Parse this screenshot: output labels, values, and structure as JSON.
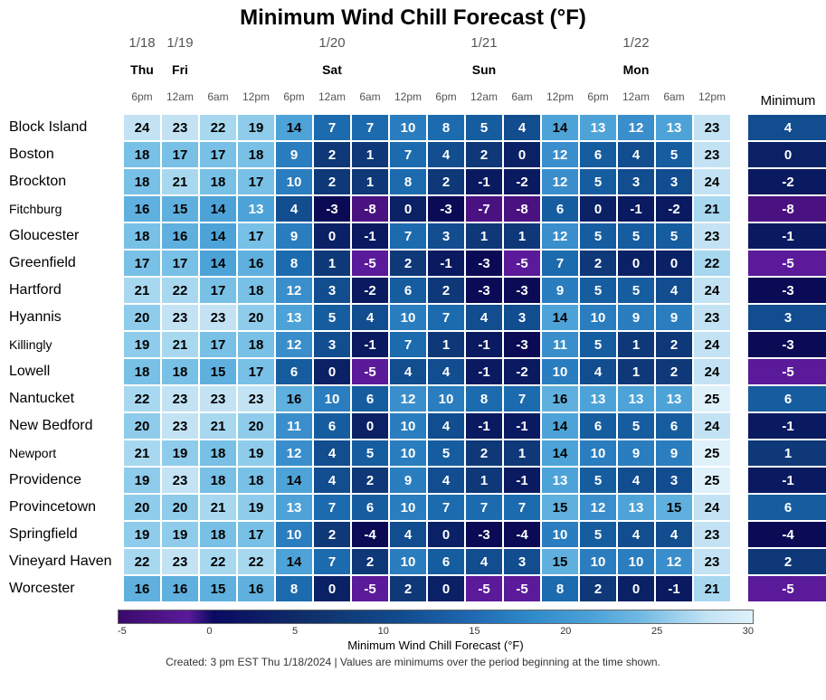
{
  "title": "Minimum Wind Chill Forecast (°F)",
  "dates": [
    "1/18",
    "1/19",
    "",
    "",
    "",
    "1/20",
    "",
    "",
    "",
    "1/21",
    "",
    "",
    "",
    "1/22",
    "",
    ""
  ],
  "dows": [
    "Thu",
    "Fri",
    "",
    "",
    "",
    "Sat",
    "",
    "",
    "",
    "Sun",
    "",
    "",
    "",
    "Mon",
    "",
    ""
  ],
  "hours": [
    "6pm",
    "12am",
    "6am",
    "12pm",
    "6pm",
    "12am",
    "6am",
    "12pm",
    "6pm",
    "12am",
    "6am",
    "12pm",
    "6pm",
    "12am",
    "6am",
    "12pm"
  ],
  "date_span": [
    1,
    4,
    4,
    4,
    3
  ],
  "min_header": "Minimum",
  "locations": [
    "Block Island",
    "Boston",
    "Brockton",
    "Fitchburg",
    "Gloucester",
    "Greenfield",
    "Hartford",
    "Hyannis",
    "Killingly",
    "Lowell",
    "Nantucket",
    "New Bedford",
    "Newport",
    "Providence",
    "Provincetown",
    "Springfield",
    "Vineyard Haven",
    "Worcester"
  ],
  "values": [
    [
      24,
      23,
      22,
      19,
      14,
      7,
      7,
      10,
      8,
      5,
      4,
      14,
      13,
      12,
      13,
      23
    ],
    [
      18,
      17,
      17,
      18,
      9,
      2,
      1,
      7,
      4,
      2,
      0,
      12,
      6,
      4,
      5,
      23
    ],
    [
      18,
      21,
      18,
      17,
      10,
      2,
      1,
      8,
      2,
      -1,
      -2,
      12,
      5,
      3,
      3,
      24
    ],
    [
      16,
      15,
      14,
      13,
      4,
      -3,
      -8,
      0,
      -3,
      -7,
      -8,
      6,
      0,
      -1,
      -2,
      21
    ],
    [
      18,
      16,
      14,
      17,
      9,
      0,
      -1,
      7,
      3,
      1,
      1,
      12,
      5,
      5,
      5,
      23
    ],
    [
      17,
      17,
      14,
      16,
      8,
      1,
      -5,
      2,
      -1,
      -3,
      -5,
      7,
      2,
      0,
      0,
      22
    ],
    [
      21,
      22,
      17,
      18,
      12,
      3,
      -2,
      6,
      2,
      -3,
      -3,
      9,
      5,
      5,
      4,
      24
    ],
    [
      20,
      23,
      23,
      20,
      13,
      5,
      4,
      10,
      7,
      4,
      3,
      14,
      10,
      9,
      9,
      23
    ],
    [
      19,
      21,
      17,
      18,
      12,
      3,
      -1,
      7,
      1,
      -1,
      -3,
      11,
      5,
      1,
      2,
      24
    ],
    [
      18,
      18,
      15,
      17,
      6,
      0,
      -5,
      4,
      4,
      -1,
      -2,
      10,
      4,
      1,
      2,
      24
    ],
    [
      22,
      23,
      23,
      23,
      16,
      10,
      6,
      12,
      10,
      8,
      7,
      16,
      13,
      13,
      13,
      25
    ],
    [
      20,
      23,
      21,
      20,
      11,
      6,
      0,
      10,
      4,
      -1,
      -1,
      14,
      6,
      5,
      6,
      24
    ],
    [
      21,
      19,
      18,
      19,
      12,
      4,
      5,
      10,
      5,
      2,
      1,
      14,
      10,
      9,
      9,
      25
    ],
    [
      19,
      23,
      18,
      18,
      14,
      4,
      2,
      9,
      4,
      1,
      -1,
      13,
      5,
      4,
      3,
      25
    ],
    [
      20,
      20,
      21,
      19,
      13,
      7,
      6,
      10,
      7,
      7,
      7,
      15,
      12,
      13,
      15,
      24
    ],
    [
      19,
      19,
      18,
      17,
      10,
      2,
      -4,
      4,
      0,
      -3,
      -4,
      10,
      5,
      4,
      4,
      23
    ],
    [
      22,
      23,
      22,
      22,
      14,
      7,
      2,
      10,
      6,
      4,
      3,
      15,
      10,
      10,
      12,
      23
    ],
    [
      16,
      16,
      15,
      16,
      8,
      0,
      -5,
      2,
      0,
      -5,
      -5,
      8,
      2,
      0,
      -1,
      21
    ]
  ],
  "minimums": [
    4,
    0,
    -2,
    -8,
    -1,
    -5,
    -3,
    3,
    -3,
    -5,
    6,
    -1,
    1,
    -1,
    6,
    -4,
    2,
    -5
  ],
  "label_font_small": [
    "Fitchburg",
    "Killingly",
    "Newport"
  ],
  "colorbar": {
    "ticks": [
      "-5",
      "0",
      "5",
      "10",
      "15",
      "20",
      "25",
      "30"
    ],
    "label": "Minimum Wind Chill Forecast (°F)"
  },
  "footer": "Created: 3 pm EST Thu 1/18/2024  |  Values are minimums over the period beginning at the time shown.",
  "palette": {
    "stops": [
      [
        -9,
        "#3a0a6b"
      ],
      [
        -7,
        "#4a1280"
      ],
      [
        -5,
        "#5a1a99"
      ],
      [
        -3,
        "#0a0a55"
      ],
      [
        -1,
        "#0a1a60"
      ],
      [
        0,
        "#0b2166"
      ],
      [
        2,
        "#0e3878"
      ],
      [
        4,
        "#114d8f"
      ],
      [
        6,
        "#165da0"
      ],
      [
        8,
        "#1c6bae"
      ],
      [
        10,
        "#2a7dbf"
      ],
      [
        12,
        "#3a8ecb"
      ],
      [
        14,
        "#4da3d8"
      ],
      [
        16,
        "#5fb0de"
      ],
      [
        18,
        "#78c0e6"
      ],
      [
        20,
        "#8fcceb"
      ],
      [
        22,
        "#a8d8f0"
      ],
      [
        24,
        "#c3e3f4"
      ],
      [
        26,
        "#dff1fa"
      ],
      [
        30,
        "#eef8fc"
      ]
    ],
    "text_light_below": 14
  }
}
